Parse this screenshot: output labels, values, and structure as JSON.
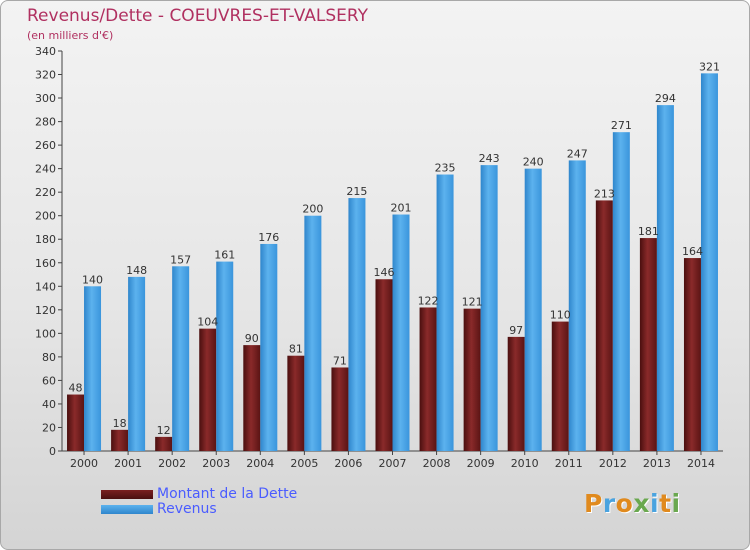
{
  "header": {
    "title": "Revenus/Dette - COEUVRES-ET-VALSERY",
    "subtitle": "(en milliers d'€)"
  },
  "legend": {
    "items": [
      {
        "label": "Montant de la Dette",
        "color": "#6b1c1c"
      },
      {
        "label": "Revenus",
        "color": "#3d9be0"
      }
    ]
  },
  "logo": {
    "text": "Proxiti",
    "letters": [
      {
        "ch": "P",
        "color": "#e08a1e"
      },
      {
        "ch": "r",
        "color": "#4aa3df"
      },
      {
        "ch": "o",
        "color": "#e08a1e"
      },
      {
        "ch": "x",
        "color": "#6aa84f"
      },
      {
        "ch": "i",
        "color": "#4aa3df"
      },
      {
        "ch": "t",
        "color": "#e08a1e"
      },
      {
        "ch": "i",
        "color": "#6aa84f"
      }
    ]
  },
  "chart_data": {
    "type": "bar",
    "title": "Revenus/Dette - COEUVRES-ET-VALSERY",
    "subtitle": "(en milliers d'€)",
    "categories": [
      "2000",
      "2001",
      "2002",
      "2003",
      "2004",
      "2005",
      "2006",
      "2007",
      "2008",
      "2009",
      "2010",
      "2011",
      "2012",
      "2013",
      "2014"
    ],
    "series": [
      {
        "name": "Montant de la Dette",
        "color": "#6b1c1c",
        "values": [
          48,
          18,
          12,
          104,
          90,
          81,
          71,
          146,
          122,
          121,
          97,
          110,
          213,
          181,
          164
        ]
      },
      {
        "name": "Revenus",
        "color": "#3d9be0",
        "values": [
          140,
          148,
          157,
          161,
          176,
          200,
          215,
          201,
          235,
          243,
          240,
          247,
          271,
          294,
          321
        ]
      }
    ],
    "ylim": [
      0,
      340
    ],
    "yticks": [
      0,
      20,
      40,
      60,
      80,
      100,
      120,
      140,
      160,
      180,
      200,
      220,
      240,
      260,
      280,
      300,
      320,
      340
    ],
    "grid": false,
    "legend_position": "bottom-left"
  }
}
